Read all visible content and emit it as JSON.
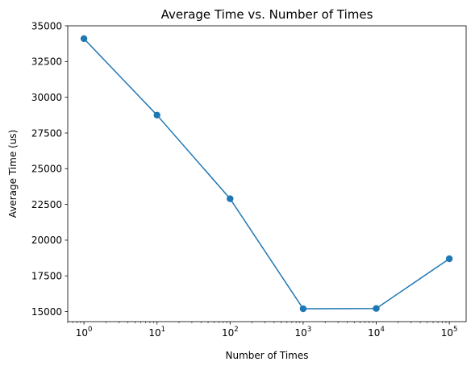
{
  "chart_data": {
    "type": "line",
    "title": "Average Time vs. Number of Times",
    "xlabel": "Number of Times",
    "ylabel": "Average Time (us)",
    "x_scale": "log",
    "xlim": [
      0.6,
      170000
    ],
    "ylim": [
      14300,
      35000
    ],
    "x_ticks": [
      {
        "value": 1,
        "base": "10",
        "exp": "0"
      },
      {
        "value": 10,
        "base": "10",
        "exp": "1"
      },
      {
        "value": 100,
        "base": "10",
        "exp": "2"
      },
      {
        "value": 1000,
        "base": "10",
        "exp": "3"
      },
      {
        "value": 10000,
        "base": "10",
        "exp": "4"
      },
      {
        "value": 100000,
        "base": "10",
        "exp": "5"
      }
    ],
    "y_ticks": [
      {
        "value": 15000,
        "label": "15000"
      },
      {
        "value": 17500,
        "label": "17500"
      },
      {
        "value": 20000,
        "label": "20000"
      },
      {
        "value": 22500,
        "label": "22500"
      },
      {
        "value": 25000,
        "label": "25000"
      },
      {
        "value": 27500,
        "label": "27500"
      },
      {
        "value": 30000,
        "label": "30000"
      },
      {
        "value": 32500,
        "label": "32500"
      },
      {
        "value": 35000,
        "label": "35000"
      }
    ],
    "grid": false,
    "legend": "none",
    "series": [
      {
        "color": "#1f77b4",
        "marker": "circle",
        "x": [
          1,
          10,
          100,
          1000,
          10000,
          100000
        ],
        "y": [
          34100,
          28750,
          22900,
          15200,
          15220,
          18700
        ]
      }
    ]
  }
}
